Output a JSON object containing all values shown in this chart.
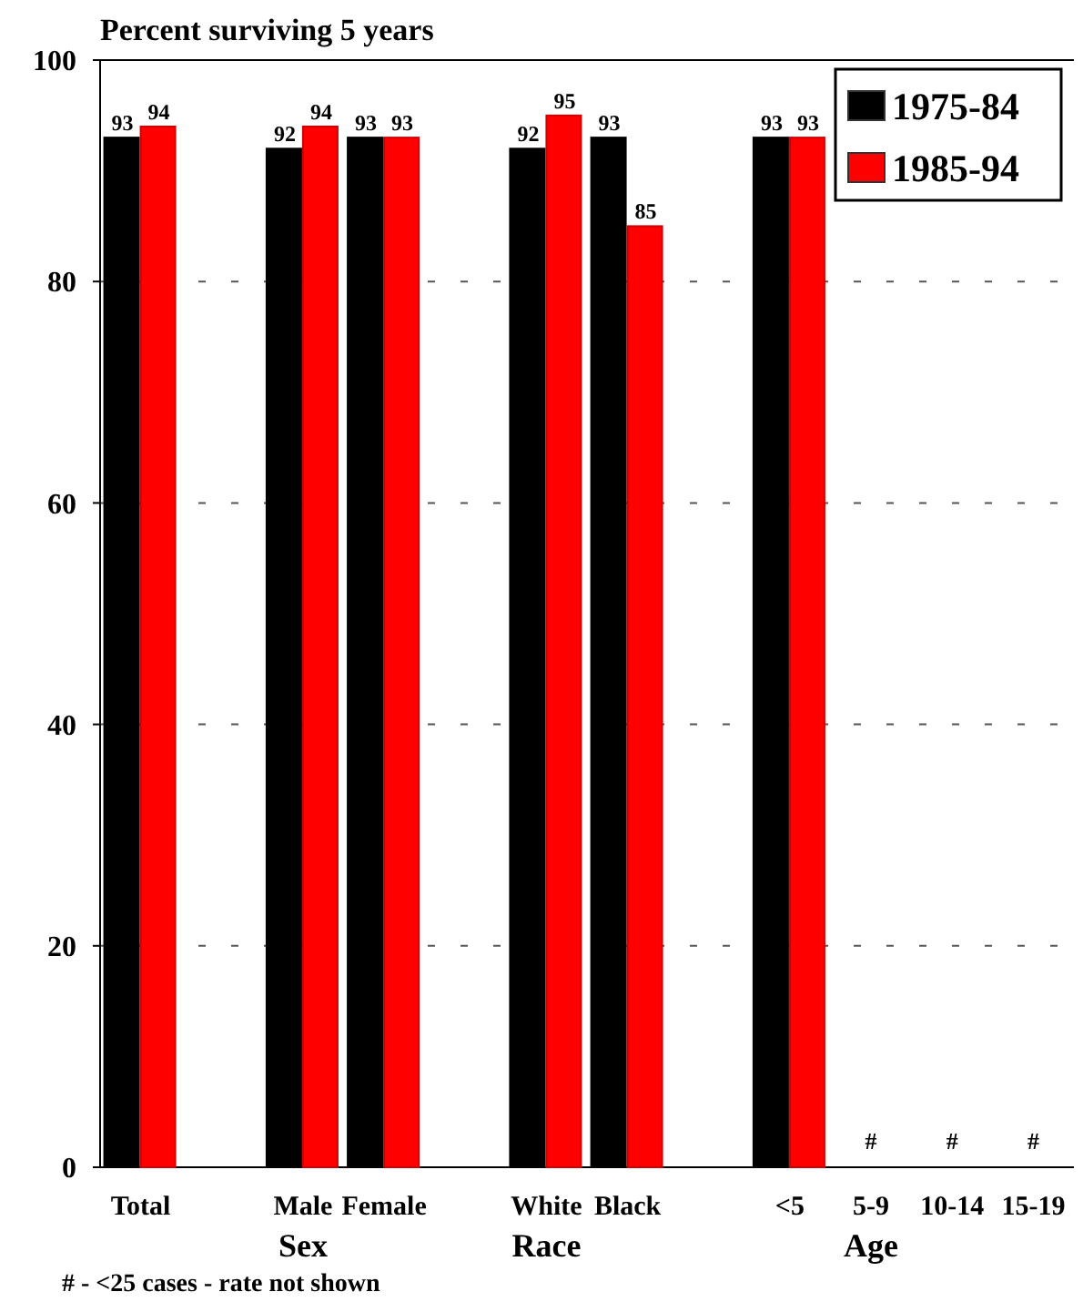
{
  "chart_data": {
    "type": "bar",
    "title": "Percent surviving 5 years",
    "categories": [
      "Total",
      null,
      "Male",
      "Female",
      null,
      "White",
      "Black",
      null,
      "<5",
      "5-9",
      "10-14",
      "15-19"
    ],
    "series": [
      {
        "name": "1975-84",
        "color": "#000000",
        "values": [
          93,
          null,
          92,
          93,
          null,
          92,
          93,
          null,
          93,
          null,
          null,
          null
        ]
      },
      {
        "name": "1985-94",
        "color": "#ff0000",
        "values": [
          94,
          null,
          94,
          93,
          null,
          95,
          85,
          null,
          93,
          null,
          null,
          null
        ]
      }
    ],
    "ylim": [
      0,
      100
    ],
    "yticks": [
      0,
      20,
      40,
      60,
      80,
      100
    ],
    "grid": "y",
    "line_style": "dashed",
    "legend": "top right",
    "data_labels": true,
    "annotations": [
      "#",
      "#",
      "#",
      "Sex",
      "Race",
      "Age",
      "# - <25 cases - rate not shown"
    ]
  }
}
